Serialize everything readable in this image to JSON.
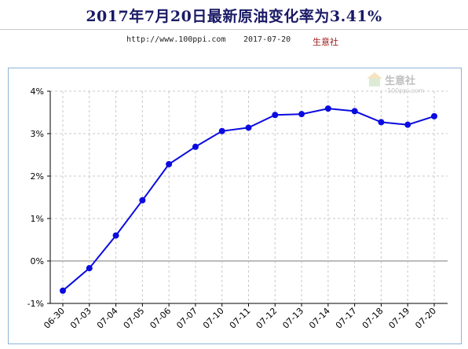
{
  "header": {
    "title": "2017年7月20日最新原油变化率为3.41%",
    "url": "http://www.100ppi.com",
    "date": "2017-07-20",
    "brand": "生意社"
  },
  "watermark": {
    "brand": "生意社",
    "url": "100ppi.com"
  },
  "colors": {
    "line": "#0b0be0",
    "title": "#1a1a66",
    "brand": "#9b1b1b",
    "grid": "#c8c8c8",
    "zero_line": "#7a7a7a"
  },
  "chart_data": {
    "type": "line",
    "categories": [
      "06-30",
      "07-03",
      "07-04",
      "07-05",
      "07-06",
      "07-07",
      "07-10",
      "07-11",
      "07-12",
      "07-13",
      "07-14",
      "07-17",
      "07-18",
      "07-19",
      "07-20"
    ],
    "series": [
      {
        "values": [
          -0.7,
          -0.17,
          0.6,
          1.43,
          2.28,
          2.69,
          3.06,
          3.14,
          3.44,
          3.46,
          3.59,
          3.53,
          3.27,
          3.21,
          3.41
        ]
      }
    ],
    "ylim": [
      -1,
      4
    ],
    "yticks": [
      -1,
      0,
      1,
      2,
      3,
      4
    ],
    "ytick_labels": [
      "-1%",
      "0%",
      "1%",
      "2%",
      "3%",
      "4%"
    ],
    "grid": true
  }
}
